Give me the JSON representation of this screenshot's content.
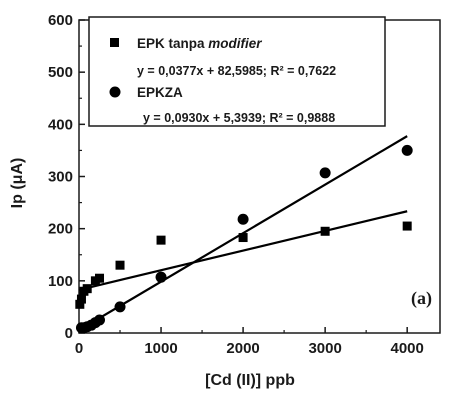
{
  "chart_data": {
    "type": "scatter",
    "xlabel": "[Cd (II)] ppb",
    "ylabel": "Ip (μA)",
    "xlim": [
      0,
      4400
    ],
    "ylim": [
      0,
      600
    ],
    "x_ticks": [
      0,
      1000,
      2000,
      3000,
      4000
    ],
    "y_ticks": [
      0,
      100,
      200,
      300,
      400,
      500,
      600
    ],
    "x_tick_labels": [
      "0",
      "1000",
      "2000",
      "3000",
      "4000"
    ],
    "y_tick_labels": [
      "0",
      "100",
      "200",
      "300",
      "400",
      "500",
      "600"
    ],
    "grid": false,
    "legend_position": "top-left",
    "annotation": "(a)",
    "series": [
      {
        "name_main": "EPK tanpa ",
        "name_italic": "modifier",
        "marker": "square",
        "equation": "y = 0,0377x + 82,5985; R² = 0,7622",
        "slope": 0.0377,
        "intercept": 82.5985,
        "fit_range": [
          0,
          4000
        ],
        "points": [
          [
            10,
            55
          ],
          [
            30,
            65
          ],
          [
            60,
            80
          ],
          [
            100,
            85
          ],
          [
            200,
            100
          ],
          [
            250,
            105
          ],
          [
            500,
            130
          ],
          [
            1000,
            178
          ],
          [
            2000,
            183
          ],
          [
            3000,
            195
          ],
          [
            4000,
            205
          ]
        ]
      },
      {
        "name": "EPKZA",
        "marker": "circle",
        "equation": "y = 0,0930x + 5,3939; R² = 0,9888",
        "slope": 0.093,
        "intercept": 5.3939,
        "fit_range": [
          0,
          4000
        ],
        "points": [
          [
            30,
            10
          ],
          [
            60,
            10
          ],
          [
            100,
            12
          ],
          [
            150,
            15
          ],
          [
            200,
            20
          ],
          [
            250,
            25
          ],
          [
            500,
            50
          ],
          [
            1000,
            107
          ],
          [
            2000,
            218
          ],
          [
            3000,
            307
          ],
          [
            4000,
            350
          ]
        ]
      }
    ]
  }
}
